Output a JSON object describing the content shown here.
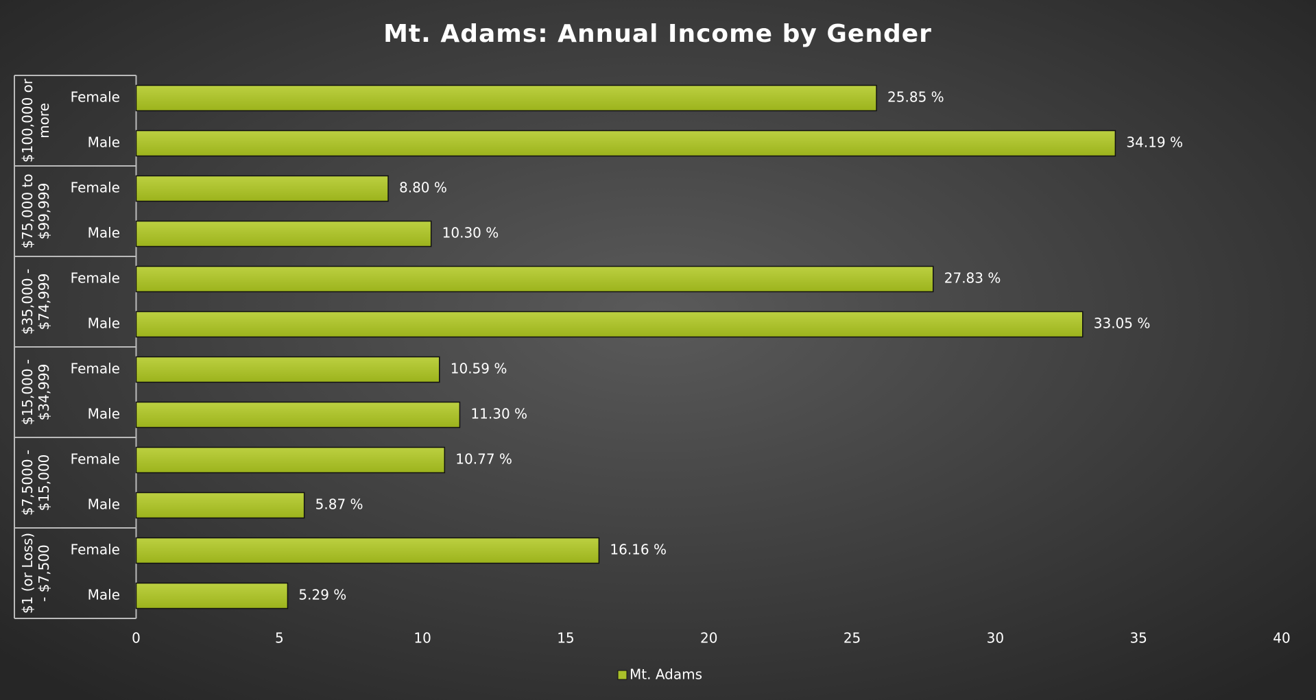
{
  "chart_data": {
    "type": "bar",
    "orientation": "horizontal",
    "title": "Mt. Adams: Annual Income by Gender",
    "groups": [
      "$100,000 or more",
      "$75,000 to $99,999",
      "$35,000 - $74,999",
      "$15,000 - $34,999",
      "$7,5000 - $15,000",
      "$1 (or Loss) - $7,500"
    ],
    "categories": [
      "Female",
      "Male",
      "Female",
      "Male",
      "Female",
      "Male",
      "Female",
      "Male",
      "Female",
      "Male",
      "Female",
      "Male"
    ],
    "series": [
      {
        "name": "Mt. Adams",
        "color": "#a9c02a",
        "values": [
          25.85,
          34.19,
          8.8,
          10.3,
          27.83,
          33.05,
          10.59,
          11.3,
          10.77,
          5.87,
          16.16,
          5.29
        ],
        "value_labels": [
          "25.85 %",
          "34.19 %",
          "8.80 %",
          "10.30 %",
          "27.83 %",
          "33.05 %",
          "10.59 %",
          "11.30 %",
          "10.77 %",
          "5.87 %",
          "16.16 %",
          "5.29 %"
        ]
      }
    ],
    "xlim": [
      0,
      40
    ],
    "xticks": [
      0,
      5,
      10,
      15,
      20,
      25,
      30,
      35,
      40
    ],
    "legend": "bottom"
  }
}
